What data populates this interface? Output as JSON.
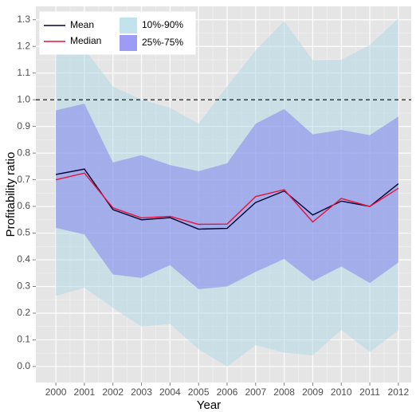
{
  "chart_data": {
    "type": "line",
    "x_label": "Year",
    "y_label": "Profitability ratio",
    "x": [
      2000,
      2001,
      2002,
      2003,
      2004,
      2005,
      2006,
      2007,
      2008,
      2009,
      2010,
      2011,
      2012
    ],
    "xlim": [
      1999.3,
      2012.45
    ],
    "xticks": [
      2000,
      2001,
      2002,
      2003,
      2004,
      2005,
      2006,
      2007,
      2008,
      2009,
      2010,
      2011,
      2012
    ],
    "ylim": [
      -0.06,
      1.35
    ],
    "yticks": [
      {
        "value": 0,
        "label": "0.0"
      },
      0.1,
      0.2,
      0.3,
      0.4,
      0.5,
      0.6,
      0.7,
      0.8,
      0.9,
      {
        "value": 1,
        "label": "1.0"
      },
      1.1,
      1.2,
      1.3
    ],
    "grid": true,
    "hline": 1.0,
    "legend_position": "top-left",
    "bands": [
      {
        "name": "10%-90%",
        "color": "#add8e6",
        "lower": [
          0.265,
          0.295,
          0.22,
          0.15,
          0.16,
          0.065,
          0.0,
          0.08,
          0.052,
          0.042,
          0.137,
          0.055,
          0.135
        ],
        "upper": [
          1.19,
          1.19,
          1.05,
          1.0,
          0.97,
          0.91,
          1.05,
          1.185,
          1.295,
          1.148,
          1.15,
          1.205,
          1.305
        ]
      },
      {
        "name": "25%-75%",
        "color": "#7b7bf0",
        "lower": [
          0.52,
          0.495,
          0.345,
          0.332,
          0.38,
          0.29,
          0.3,
          0.355,
          0.403,
          0.32,
          0.375,
          0.313,
          0.39
        ],
        "upper": [
          0.96,
          0.985,
          0.765,
          0.792,
          0.755,
          0.732,
          0.762,
          0.91,
          0.965,
          0.87,
          0.887,
          0.867,
          0.937
        ]
      }
    ],
    "series": [
      {
        "name": "Mean",
        "color": "#000033",
        "values": [
          0.72,
          0.74,
          0.588,
          0.55,
          0.558,
          0.515,
          0.518,
          0.615,
          0.658,
          0.568,
          0.62,
          0.6,
          0.685
        ]
      },
      {
        "name": "Median",
        "color": "#e8113a",
        "values": [
          0.7,
          0.725,
          0.595,
          0.557,
          0.563,
          0.533,
          0.534,
          0.637,
          0.663,
          0.542,
          0.63,
          0.6,
          0.668
        ]
      }
    ]
  }
}
